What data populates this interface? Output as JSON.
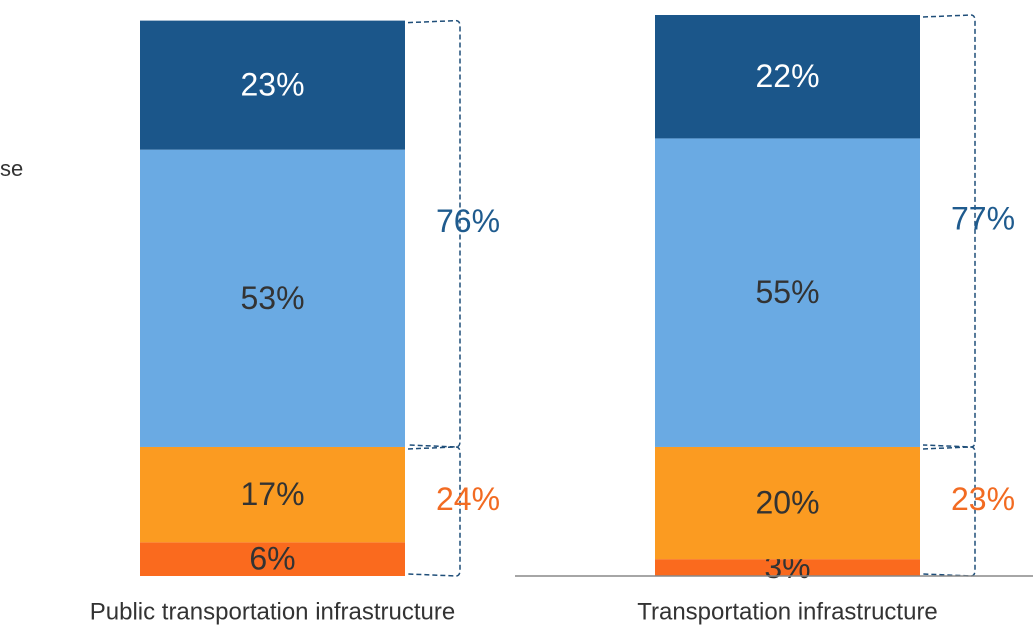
{
  "chart_data": {
    "type": "bar",
    "stacked": true,
    "legend_fragment": "se",
    "categories": [
      "Public transportation infrastructure",
      "Transportation infrastructure"
    ],
    "ylim": [
      0,
      100
    ],
    "series": [
      {
        "color": "#fa6a1e",
        "label_color": "#333333",
        "values": [
          6,
          3
        ],
        "value_labels": [
          "6%",
          "3%"
        ]
      },
      {
        "color": "#fb9b21",
        "label_color": "#333333",
        "values": [
          17,
          20
        ],
        "value_labels": [
          "17%",
          "20%"
        ]
      },
      {
        "color": "#6aaae3",
        "label_color": "#333333",
        "values": [
          53,
          55
        ],
        "value_labels": [
          "53%",
          "55%"
        ]
      },
      {
        "color": "#1b568a",
        "label_color": "#ffffff",
        "values": [
          23,
          22
        ],
        "value_labels": [
          "23%",
          "22%"
        ]
      }
    ],
    "brackets": [
      {
        "name": "top",
        "color": "#1f5b8e",
        "series_from": 2,
        "series_to": 3,
        "values": [
          76,
          77
        ],
        "value_labels": [
          "76%",
          "77%"
        ]
      },
      {
        "name": "bottom",
        "color": "#f26b22",
        "series_from": 0,
        "series_to": 1,
        "values": [
          24,
          23
        ],
        "value_labels": [
          "24%",
          "23%"
        ]
      }
    ]
  }
}
